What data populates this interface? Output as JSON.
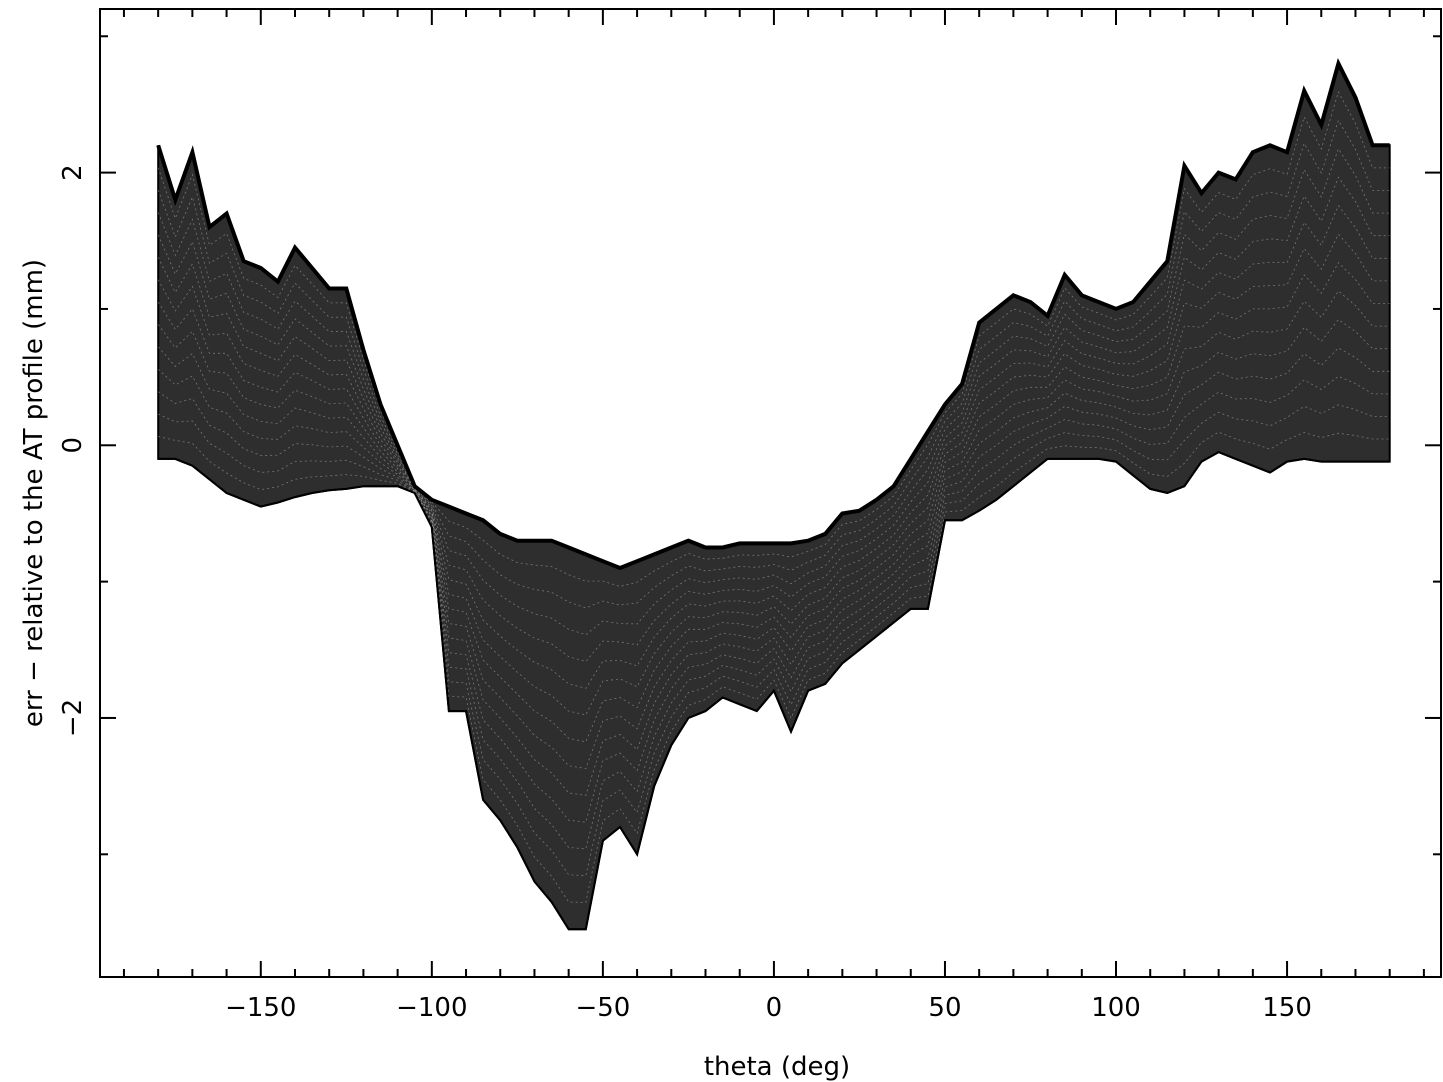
{
  "chart_data": {
    "type": "line",
    "title": "",
    "xlabel": "theta (deg)",
    "ylabel": "err − relative to the AT profile (mm)",
    "xlim": [
      -197,
      195
    ],
    "ylim": [
      -3.9,
      3.2
    ],
    "x_ticks": [
      {
        "value": -150,
        "label": "−150"
      },
      {
        "value": -100,
        "label": "−100"
      },
      {
        "value": -50,
        "label": "−50"
      },
      {
        "value": 0,
        "label": "0"
      },
      {
        "value": 50,
        "label": "50"
      },
      {
        "value": 100,
        "label": "100"
      },
      {
        "value": 150,
        "label": "150"
      }
    ],
    "y_ticks": [
      {
        "value": 2,
        "label": "2"
      },
      {
        "value": 0,
        "label": "0"
      },
      {
        "value": -2,
        "label": "−2"
      }
    ],
    "grid": false,
    "legend": "none",
    "color": "#000000",
    "envelope": {
      "x": [
        -180,
        -175,
        -170,
        -165,
        -160,
        -155,
        -150,
        -145,
        -140,
        -135,
        -130,
        -125,
        -120,
        -115,
        -110,
        -105,
        -100,
        -95,
        -90,
        -85,
        -80,
        -75,
        -70,
        -65,
        -60,
        -55,
        -50,
        -45,
        -40,
        -35,
        -30,
        -25,
        -20,
        -15,
        -10,
        -5,
        0,
        5,
        10,
        15,
        20,
        25,
        30,
        35,
        40,
        45,
        50,
        55,
        60,
        65,
        70,
        75,
        80,
        85,
        90,
        95,
        100,
        105,
        110,
        115,
        120,
        125,
        130,
        135,
        140,
        145,
        150,
        155,
        160,
        165,
        170,
        175,
        180
      ],
      "upper": [
        2.2,
        1.8,
        2.15,
        1.6,
        1.7,
        1.35,
        1.3,
        1.2,
        1.45,
        1.3,
        1.15,
        1.15,
        0.7,
        0.3,
        0.0,
        -0.3,
        -0.4,
        -0.45,
        -0.5,
        -0.55,
        -0.65,
        -0.7,
        -0.7,
        -0.7,
        -0.75,
        -0.8,
        -0.85,
        -0.9,
        -0.85,
        -0.8,
        -0.75,
        -0.7,
        -0.75,
        -0.75,
        -0.72,
        -0.72,
        -0.72,
        -0.72,
        -0.7,
        -0.65,
        -0.5,
        -0.48,
        -0.4,
        -0.3,
        -0.1,
        0.1,
        0.3,
        0.45,
        0.9,
        1.0,
        1.1,
        1.05,
        0.95,
        1.25,
        1.1,
        1.05,
        1.0,
        1.05,
        1.2,
        1.35,
        2.05,
        1.85,
        2.0,
        1.95,
        2.15,
        2.2,
        2.15,
        2.6,
        2.35,
        2.8,
        2.55,
        2.2,
        2.2
      ],
      "lower": [
        -0.1,
        -0.1,
        -0.15,
        -0.25,
        -0.35,
        -0.4,
        -0.45,
        -0.42,
        -0.38,
        -0.35,
        -0.33,
        -0.32,
        -0.3,
        -0.3,
        -0.3,
        -0.35,
        -0.6,
        -1.95,
        -1.95,
        -2.6,
        -2.75,
        -2.95,
        -3.2,
        -3.35,
        -3.55,
        -3.55,
        -2.9,
        -2.8,
        -3.0,
        -2.5,
        -2.2,
        -2.0,
        -1.95,
        -1.85,
        -1.9,
        -1.95,
        -1.8,
        -2.1,
        -1.8,
        -1.75,
        -1.6,
        -1.5,
        -1.4,
        -1.3,
        -1.2,
        -1.2,
        -0.55,
        -0.55,
        -0.48,
        -0.4,
        -0.3,
        -0.2,
        -0.1,
        -0.1,
        -0.1,
        -0.1,
        -0.12,
        -0.22,
        -0.32,
        -0.35,
        -0.3,
        -0.12,
        -0.05,
        -0.1,
        -0.15,
        -0.2,
        -0.12,
        -0.1,
        -0.12,
        -0.12,
        -0.12,
        -0.12,
        -0.12
      ]
    }
  }
}
